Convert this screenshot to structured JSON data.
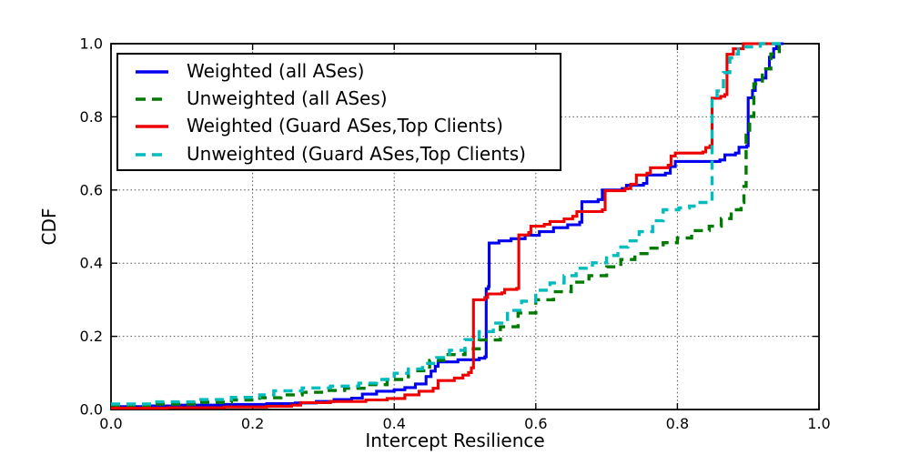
{
  "chart_data": {
    "type": "line",
    "subtype": "cdf-step",
    "title": "",
    "xlabel": "Intercept Resilience",
    "ylabel": "CDF",
    "xlim": [
      0.0,
      1.0
    ],
    "ylim": [
      0.0,
      1.0
    ],
    "xticks": [
      "0.0",
      "0.2",
      "0.4",
      "0.6",
      "0.8",
      "1.0"
    ],
    "yticks": [
      "0.0",
      "0.2",
      "0.4",
      "0.6",
      "0.8",
      "1.0"
    ],
    "grid": true,
    "grid_style": "dotted",
    "legend_position": "upper left",
    "axis_color": "#000000",
    "series": [
      {
        "name": "Weighted (all ASes)",
        "color": "#0000ee",
        "dash": "solid",
        "points": [
          [
            0,
            0.008
          ],
          [
            0.05,
            0.01
          ],
          [
            0.1,
            0.012
          ],
          [
            0.16,
            0.014
          ],
          [
            0.22,
            0.016
          ],
          [
            0.26,
            0.018
          ],
          [
            0.29,
            0.022
          ],
          [
            0.315,
            0.027
          ],
          [
            0.34,
            0.031
          ],
          [
            0.355,
            0.042
          ],
          [
            0.375,
            0.05
          ],
          [
            0.4,
            0.054
          ],
          [
            0.415,
            0.06
          ],
          [
            0.43,
            0.07
          ],
          [
            0.445,
            0.09
          ],
          [
            0.452,
            0.105
          ],
          [
            0.458,
            0.118
          ],
          [
            0.462,
            0.13
          ],
          [
            0.49,
            0.136
          ],
          [
            0.52,
            0.14
          ],
          [
            0.528,
            0.144
          ],
          [
            0.53,
            0.33
          ],
          [
            0.533,
            0.336
          ],
          [
            0.534,
            0.455
          ],
          [
            0.548,
            0.461
          ],
          [
            0.565,
            0.467
          ],
          [
            0.585,
            0.476
          ],
          [
            0.605,
            0.486
          ],
          [
            0.625,
            0.497
          ],
          [
            0.645,
            0.505
          ],
          [
            0.662,
            0.512
          ],
          [
            0.665,
            0.568
          ],
          [
            0.688,
            0.574
          ],
          [
            0.694,
            0.6
          ],
          [
            0.722,
            0.604
          ],
          [
            0.728,
            0.613
          ],
          [
            0.752,
            0.618
          ],
          [
            0.757,
            0.641
          ],
          [
            0.783,
            0.646
          ],
          [
            0.79,
            0.664
          ],
          [
            0.797,
            0.678
          ],
          [
            0.86,
            0.682
          ],
          [
            0.867,
            0.696
          ],
          [
            0.882,
            0.701
          ],
          [
            0.887,
            0.717
          ],
          [
            0.898,
            0.721
          ],
          [
            0.9,
            0.852
          ],
          [
            0.906,
            0.872
          ],
          [
            0.91,
            0.901
          ],
          [
            0.92,
            0.906
          ],
          [
            0.925,
            0.931
          ],
          [
            0.93,
            0.963
          ],
          [
            0.936,
            0.986
          ],
          [
            0.94,
            1.0
          ],
          [
            0.95,
            1.0
          ]
        ]
      },
      {
        "name": "Unweighted (all ASes)",
        "color": "#007a00",
        "dash": "dashed",
        "points": [
          [
            0,
            0.01
          ],
          [
            0.06,
            0.015
          ],
          [
            0.12,
            0.02
          ],
          [
            0.17,
            0.026
          ],
          [
            0.21,
            0.032
          ],
          [
            0.24,
            0.04
          ],
          [
            0.27,
            0.047
          ],
          [
            0.3,
            0.052
          ],
          [
            0.33,
            0.058
          ],
          [
            0.36,
            0.068
          ],
          [
            0.39,
            0.082
          ],
          [
            0.42,
            0.106
          ],
          [
            0.45,
            0.134
          ],
          [
            0.47,
            0.15
          ],
          [
            0.5,
            0.166
          ],
          [
            0.52,
            0.19
          ],
          [
            0.55,
            0.226
          ],
          [
            0.575,
            0.264
          ],
          [
            0.6,
            0.3
          ],
          [
            0.625,
            0.322
          ],
          [
            0.65,
            0.348
          ],
          [
            0.675,
            0.366
          ],
          [
            0.7,
            0.39
          ],
          [
            0.72,
            0.41
          ],
          [
            0.74,
            0.426
          ],
          [
            0.76,
            0.441
          ],
          [
            0.78,
            0.456
          ],
          [
            0.8,
            0.469
          ],
          [
            0.82,
            0.489
          ],
          [
            0.845,
            0.501
          ],
          [
            0.862,
            0.522
          ],
          [
            0.876,
            0.546
          ],
          [
            0.89,
            0.566
          ],
          [
            0.894,
            0.61
          ],
          [
            0.897,
            0.75
          ],
          [
            0.902,
            0.801
          ],
          [
            0.908,
            0.89
          ],
          [
            0.92,
            0.931
          ],
          [
            0.932,
            0.972
          ],
          [
            0.944,
            1.0
          ],
          [
            0.952,
            1.0
          ]
        ]
      },
      {
        "name": "Weighted (Guard ASes,Top Clients)",
        "color": "#ee0000",
        "dash": "solid",
        "points": [
          [
            0,
            0.004
          ],
          [
            0.08,
            0.005
          ],
          [
            0.16,
            0.007
          ],
          [
            0.22,
            0.009
          ],
          [
            0.255,
            0.012
          ],
          [
            0.268,
            0.019
          ],
          [
            0.31,
            0.022
          ],
          [
            0.36,
            0.026
          ],
          [
            0.39,
            0.03
          ],
          [
            0.415,
            0.04
          ],
          [
            0.435,
            0.05
          ],
          [
            0.455,
            0.058
          ],
          [
            0.462,
            0.079
          ],
          [
            0.485,
            0.086
          ],
          [
            0.497,
            0.094
          ],
          [
            0.505,
            0.101
          ],
          [
            0.509,
            0.114
          ],
          [
            0.512,
            0.3
          ],
          [
            0.528,
            0.306
          ],
          [
            0.532,
            0.316
          ],
          [
            0.552,
            0.319
          ],
          [
            0.556,
            0.328
          ],
          [
            0.573,
            0.331
          ],
          [
            0.576,
            0.477
          ],
          [
            0.59,
            0.484
          ],
          [
            0.593,
            0.501
          ],
          [
            0.612,
            0.506
          ],
          [
            0.62,
            0.514
          ],
          [
            0.64,
            0.521
          ],
          [
            0.652,
            0.528
          ],
          [
            0.658,
            0.541
          ],
          [
            0.694,
            0.546
          ],
          [
            0.698,
            0.598
          ],
          [
            0.726,
            0.604
          ],
          [
            0.734,
            0.616
          ],
          [
            0.742,
            0.641
          ],
          [
            0.757,
            0.646
          ],
          [
            0.762,
            0.661
          ],
          [
            0.787,
            0.668
          ],
          [
            0.791,
            0.693
          ],
          [
            0.797,
            0.701
          ],
          [
            0.836,
            0.704
          ],
          [
            0.84,
            0.716
          ],
          [
            0.846,
            0.721
          ],
          [
            0.849,
            0.851
          ],
          [
            0.861,
            0.856
          ],
          [
            0.867,
            0.861
          ],
          [
            0.87,
            0.971
          ],
          [
            0.879,
            0.986
          ],
          [
            0.893,
            1.0
          ],
          [
            0.94,
            1.0
          ]
        ]
      },
      {
        "name": "Unweighted (Guard ASes,Top Clients)",
        "color": "#00bcbc",
        "dash": "dashed",
        "points": [
          [
            0,
            0.015
          ],
          [
            0.06,
            0.021
          ],
          [
            0.12,
            0.027
          ],
          [
            0.17,
            0.033
          ],
          [
            0.21,
            0.04
          ],
          [
            0.23,
            0.051
          ],
          [
            0.27,
            0.059
          ],
          [
            0.31,
            0.064
          ],
          [
            0.35,
            0.072
          ],
          [
            0.375,
            0.082
          ],
          [
            0.4,
            0.099
          ],
          [
            0.42,
            0.111
          ],
          [
            0.44,
            0.126
          ],
          [
            0.46,
            0.142
          ],
          [
            0.478,
            0.162
          ],
          [
            0.5,
            0.191
          ],
          [
            0.52,
            0.213
          ],
          [
            0.54,
            0.236
          ],
          [
            0.56,
            0.271
          ],
          [
            0.58,
            0.296
          ],
          [
            0.6,
            0.326
          ],
          [
            0.62,
            0.346
          ],
          [
            0.64,
            0.366
          ],
          [
            0.657,
            0.386
          ],
          [
            0.68,
            0.401
          ],
          [
            0.7,
            0.421
          ],
          [
            0.716,
            0.444
          ],
          [
            0.73,
            0.461
          ],
          [
            0.746,
            0.486
          ],
          [
            0.765,
            0.516
          ],
          [
            0.78,
            0.546
          ],
          [
            0.802,
            0.551
          ],
          [
            0.817,
            0.556
          ],
          [
            0.827,
            0.566
          ],
          [
            0.845,
            0.571
          ],
          [
            0.849,
            0.852
          ],
          [
            0.856,
            0.871
          ],
          [
            0.865,
            0.921
          ],
          [
            0.874,
            0.961
          ],
          [
            0.881,
            0.972
          ],
          [
            0.886,
            0.991
          ],
          [
            0.914,
            0.993
          ],
          [
            0.917,
            1.0
          ],
          [
            0.955,
            1.0
          ]
        ]
      }
    ]
  }
}
